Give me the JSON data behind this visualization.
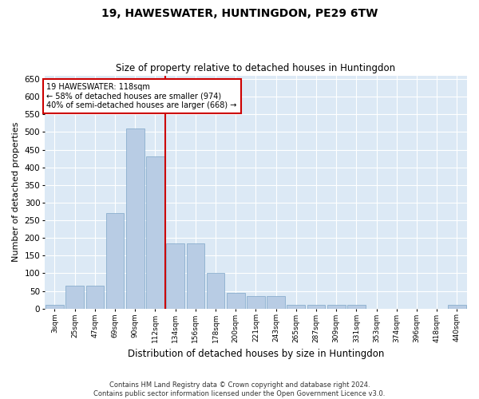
{
  "title": "19, HAWESWATER, HUNTINGDON, PE29 6TW",
  "subtitle": "Size of property relative to detached houses in Huntingdon",
  "xlabel": "Distribution of detached houses by size in Huntingdon",
  "ylabel": "Number of detached properties",
  "categories": [
    "3sqm",
    "25sqm",
    "47sqm",
    "69sqm",
    "90sqm",
    "112sqm",
    "134sqm",
    "156sqm",
    "178sqm",
    "200sqm",
    "221sqm",
    "243sqm",
    "265sqm",
    "287sqm",
    "309sqm",
    "331sqm",
    "353sqm",
    "374sqm",
    "396sqm",
    "418sqm",
    "440sqm"
  ],
  "values": [
    10,
    65,
    65,
    270,
    510,
    430,
    185,
    185,
    100,
    45,
    35,
    35,
    10,
    10,
    10,
    10,
    0,
    0,
    0,
    0,
    10
  ],
  "bar_color": "#b8cce4",
  "bar_edge_color": "#7da6c8",
  "bg_color": "#dce9f5",
  "vline_x": 5.5,
  "vline_color": "#cc0000",
  "annotation_lines": [
    "19 HAWESWATER: 118sqm",
    "← 58% of detached houses are smaller (974)",
    "40% of semi-detached houses are larger (668) →"
  ],
  "annotation_box_color": "#cc0000",
  "footer1": "Contains HM Land Registry data © Crown copyright and database right 2024.",
  "footer2": "Contains public sector information licensed under the Open Government Licence v3.0.",
  "ylim": [
    0,
    660
  ],
  "yticks": [
    0,
    50,
    100,
    150,
    200,
    250,
    300,
    350,
    400,
    450,
    500,
    550,
    600,
    650
  ]
}
